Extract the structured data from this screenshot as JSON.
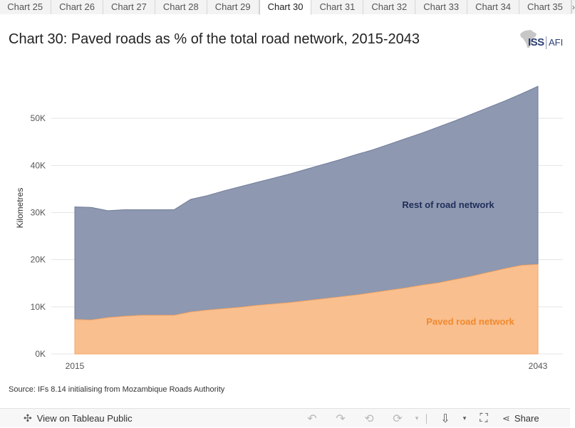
{
  "tabs": {
    "prev_icon": "chevron-left",
    "items": [
      "Chart 25",
      "Chart 26",
      "Chart 27",
      "Chart 28",
      "Chart 29",
      "Chart 30",
      "Chart 31",
      "Chart 32",
      "Chart 33",
      "Chart 34",
      "Chart 35"
    ],
    "active": "Chart 30",
    "next_icon": "chevron-right"
  },
  "title": "Chart 30: Paved roads as % of the total road network, 2015-2043",
  "logo": {
    "text": "ISS",
    "text2": "AFI"
  },
  "colors": {
    "rest": "#8e98b0",
    "paved": "#f9bf8f",
    "rest_label": "#1f2d5a",
    "paved_label": "#f0892f"
  },
  "chart_data": {
    "type": "area",
    "stacked": true,
    "ylabel": "Kilometres",
    "xlabel": "",
    "x": [
      2015,
      2016,
      2017,
      2018,
      2019,
      2020,
      2021,
      2022,
      2023,
      2024,
      2025,
      2026,
      2027,
      2028,
      2029,
      2030,
      2031,
      2032,
      2033,
      2034,
      2035,
      2036,
      2037,
      2038,
      2039,
      2040,
      2041,
      2042,
      2043
    ],
    "x_tick_labels": [
      "2015",
      "2043"
    ],
    "ylim": [
      0,
      60000
    ],
    "y_ticks": [
      0,
      10000,
      20000,
      30000,
      40000,
      50000
    ],
    "y_tick_labels": [
      "0K",
      "10K",
      "20K",
      "30K",
      "40K",
      "50K"
    ],
    "grid": true,
    "series": [
      {
        "name": "Paved road network",
        "values": [
          7300,
          7200,
          7700,
          8000,
          8200,
          8200,
          8200,
          8900,
          9300,
          9600,
          9900,
          10300,
          10600,
          10900,
          11300,
          11700,
          12100,
          12500,
          13000,
          13500,
          14000,
          14600,
          15100,
          15800,
          16500,
          17300,
          18100,
          18800,
          19000
        ]
      },
      {
        "name": "Rest of road network",
        "totals": [
          31200,
          31100,
          30400,
          30600,
          30600,
          30600,
          30600,
          32800,
          33600,
          34600,
          35500,
          36400,
          37300,
          38200,
          39200,
          40200,
          41200,
          42300,
          43300,
          44500,
          45700,
          46900,
          48200,
          49500,
          50900,
          52300,
          53700,
          55200,
          56800
        ]
      }
    ]
  },
  "source": "Source: IFs 8.14 initialising from Mozambique Roads Authority",
  "footer": {
    "view_label": "View on Tableau Public",
    "share_label": "Share"
  }
}
